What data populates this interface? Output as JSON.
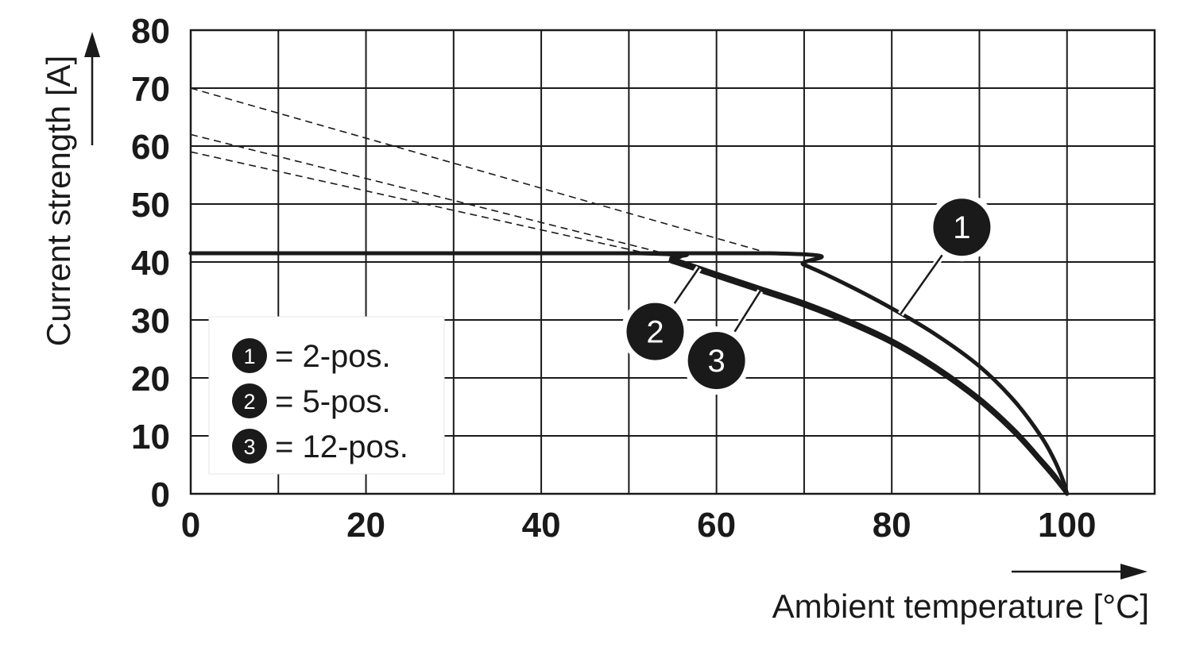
{
  "chart_data": {
    "type": "line",
    "xlabel": "Ambient temperature [°C]",
    "ylabel": "Current strength [A]",
    "xlim": [
      0,
      110
    ],
    "ylim": [
      0,
      80
    ],
    "xticks": [
      0,
      20,
      40,
      60,
      80,
      100
    ],
    "yticks": [
      0,
      10,
      20,
      30,
      40,
      50,
      60,
      70,
      80
    ],
    "xgrid_step": 10,
    "ygrid_step": 10,
    "grid": true,
    "legend_position": "bottom-left",
    "series": [
      {
        "name": "2-pos.",
        "marker_label": "1",
        "style": "solid",
        "x": [
          0,
          66,
          70,
          75,
          80,
          85,
          90,
          94,
          97,
          98.5,
          99.5,
          100
        ],
        "y": [
          41.5,
          41.5,
          39.5,
          36,
          32,
          27.5,
          22,
          16,
          10,
          6,
          2.5,
          0
        ]
      },
      {
        "name": "5-pos.",
        "marker_label": "2",
        "style": "solid",
        "x": [
          0,
          52,
          55,
          60,
          65,
          70,
          75,
          80,
          85,
          90,
          94,
          97,
          98.7,
          100
        ],
        "y": [
          41.5,
          41.5,
          40.5,
          38,
          35.5,
          33,
          30,
          26.5,
          22,
          16.5,
          11,
          6,
          3,
          0
        ]
      },
      {
        "name": "12-pos.",
        "marker_label": "3",
        "style": "solid",
        "x": [
          0,
          51,
          55,
          60,
          65,
          70,
          75,
          80,
          85,
          90,
          94,
          97,
          98.7,
          100
        ],
        "y": [
          41.5,
          41.5,
          40,
          37.5,
          35,
          32.5,
          29.5,
          26,
          21.5,
          16,
          10.5,
          5.5,
          2.5,
          0
        ]
      }
    ],
    "extrapolations": [
      {
        "of": "1",
        "style": "dashed",
        "x": [
          0,
          66
        ],
        "y": [
          70,
          41.5
        ]
      },
      {
        "of": "2",
        "style": "dashed",
        "x": [
          0,
          54
        ],
        "y": [
          62,
          41.5
        ]
      },
      {
        "of": "3",
        "style": "dashed",
        "x": [
          0,
          52
        ],
        "y": [
          59,
          41.5
        ]
      }
    ],
    "annotations": [
      {
        "label": "1",
        "x": 88,
        "y": 46,
        "points_to": {
          "x": 81,
          "y": 31
        }
      },
      {
        "label": "2",
        "x": 53,
        "y": 28,
        "points_to": {
          "x": 58,
          "y": 39
        }
      },
      {
        "label": "3",
        "x": 60,
        "y": 23,
        "points_to": {
          "x": 65,
          "y": 35
        }
      }
    ],
    "legend": [
      {
        "marker": "1",
        "text": "= 2-pos."
      },
      {
        "marker": "2",
        "text": "= 5-pos."
      },
      {
        "marker": "3",
        "text": "= 12-pos."
      }
    ]
  }
}
